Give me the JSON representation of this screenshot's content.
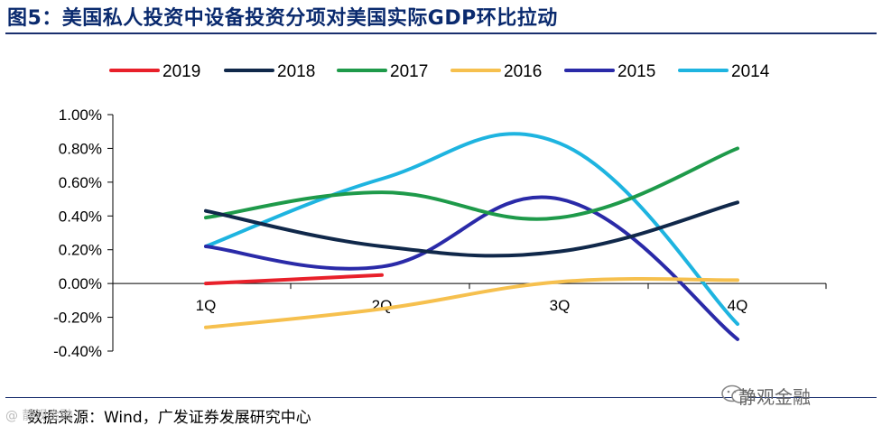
{
  "title": "图5：美国私人投资中设备投资分项对美国实际GDP环比拉动",
  "source": "数据来源：Wind，广发证券发展研究中心",
  "watermark": "静观金融",
  "watermark_left": "@ 静观金融",
  "chart_data": {
    "type": "line",
    "title": "美国私人投资中设备投资分项对美国实际GDP环比拉动",
    "xlabel": "",
    "ylabel": "",
    "categories": [
      "1Q",
      "2Q",
      "3Q",
      "4Q"
    ],
    "yticks": [
      "1.00%",
      "0.80%",
      "0.60%",
      "0.40%",
      "0.20%",
      "0.00%",
      "-0.20%",
      "-0.40%"
    ],
    "ylim": [
      -0.4,
      1.0
    ],
    "legend_position": "top",
    "series": [
      {
        "name": "2019",
        "color": "#e8202a",
        "values": [
          0.0,
          0.05,
          null,
          null
        ]
      },
      {
        "name": "2018",
        "color": "#10284a",
        "values": [
          0.43,
          0.22,
          0.19,
          0.48
        ]
      },
      {
        "name": "2017",
        "color": "#1e9a4a",
        "values": [
          0.39,
          0.54,
          0.39,
          0.8
        ]
      },
      {
        "name": "2016",
        "color": "#f6c04e",
        "values": [
          -0.26,
          -0.15,
          0.01,
          0.02
        ]
      },
      {
        "name": "2015",
        "color": "#2a2aa8",
        "values": [
          0.22,
          0.1,
          0.5,
          -0.33
        ]
      },
      {
        "name": "2014",
        "color": "#1eb4e0",
        "values": [
          0.22,
          0.62,
          0.83,
          -0.24
        ]
      }
    ]
  }
}
